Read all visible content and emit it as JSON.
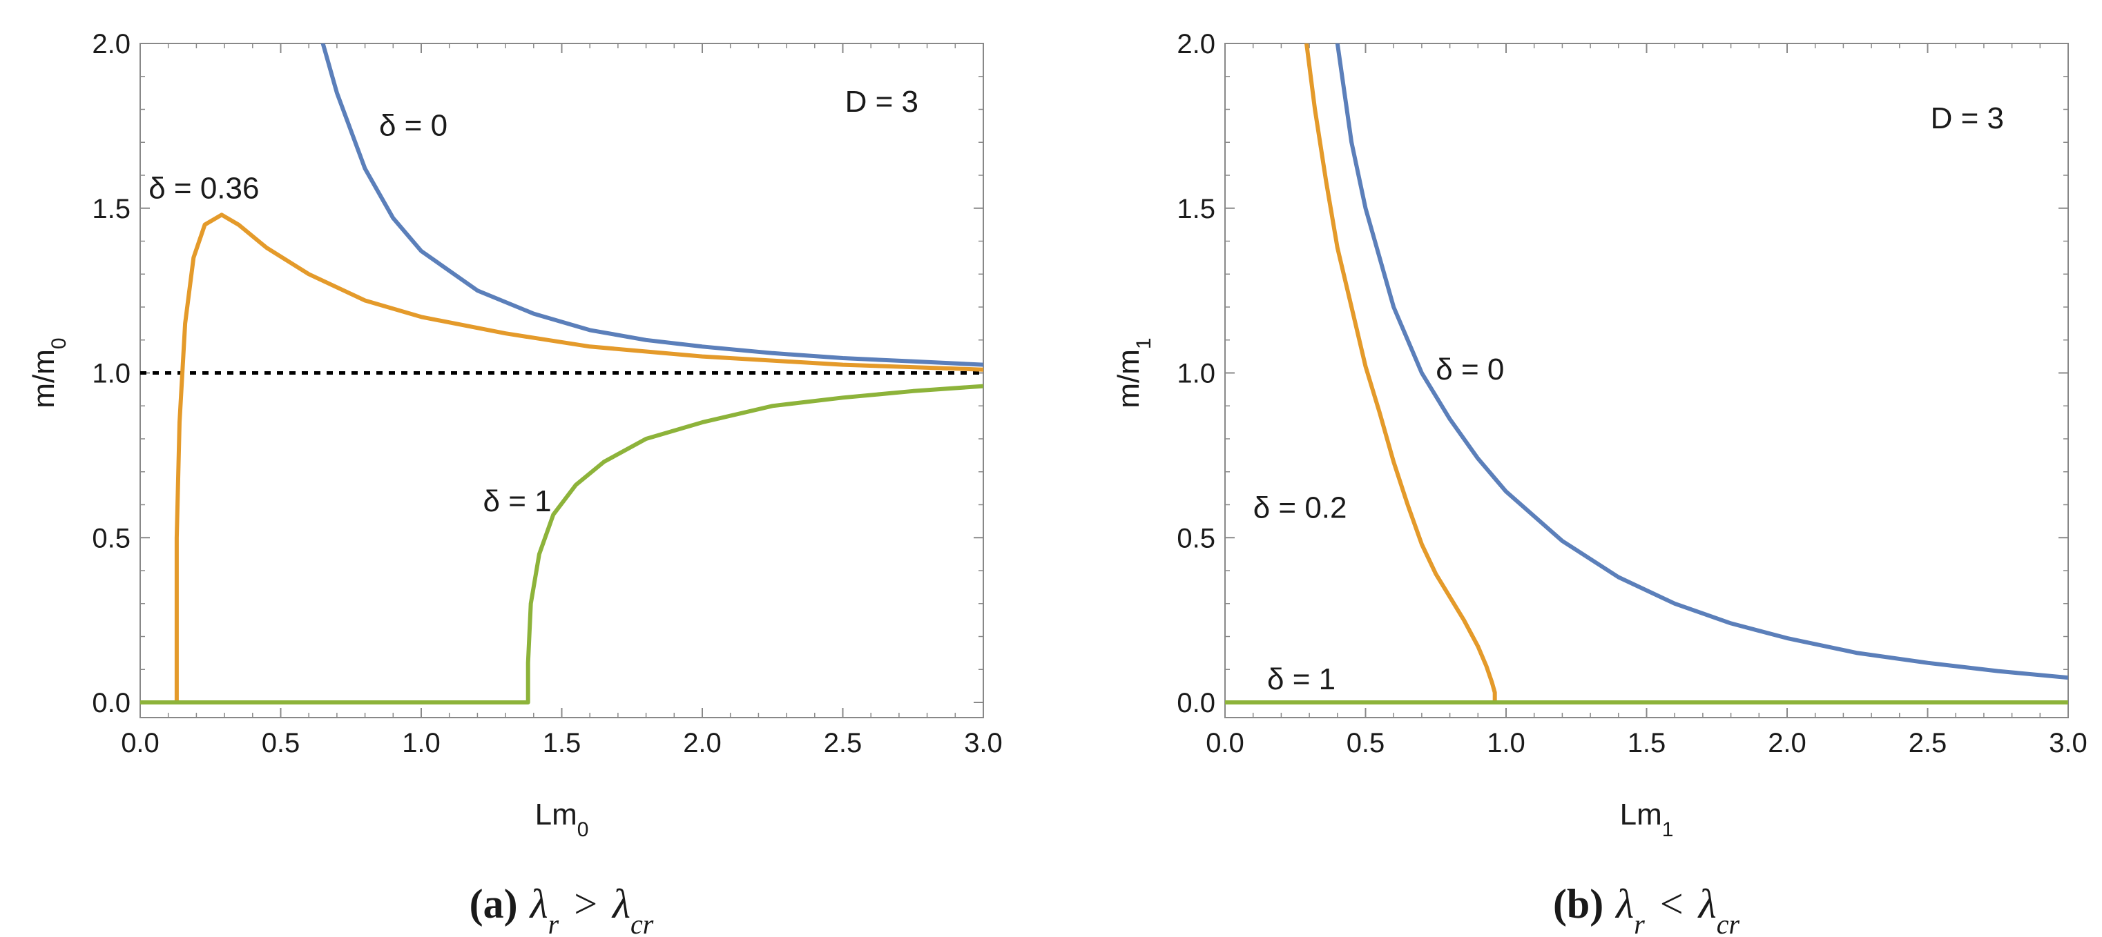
{
  "chart_data": [
    {
      "type": "line",
      "panel": "a",
      "caption": {
        "label": "(a)",
        "cond_left": "λ",
        "cond_left_sub": "r",
        "op": ">",
        "cond_right": "λ",
        "cond_right_sub": "cr"
      },
      "xlabel": {
        "text": "Lm",
        "sub": "0"
      },
      "ylabel": {
        "text": "m/m",
        "sub": "0"
      },
      "xlim": [
        0,
        3
      ],
      "ylim": [
        0,
        2
      ],
      "xticks": [
        "0.0",
        "0.5",
        "1.0",
        "1.5",
        "2.0",
        "2.5",
        "3.0"
      ],
      "yticks": [
        "0.0",
        "0.5",
        "1.0",
        "1.5",
        "2.0"
      ],
      "corner_label": "D = 3",
      "colors": {
        "blue": "#5b7fba",
        "orange": "#e49a2a",
        "green": "#8db33a",
        "ref": "#000000"
      },
      "reference_line": {
        "y": 1.0,
        "style": "dotted"
      },
      "series": [
        {
          "name": "δ = 0",
          "color": "blue",
          "x": [
            0.65,
            0.7,
            0.8,
            0.9,
            1.0,
            1.2,
            1.4,
            1.6,
            1.8,
            2.0,
            2.25,
            2.5,
            2.75,
            3.0
          ],
          "y": [
            2.0,
            1.85,
            1.62,
            1.47,
            1.37,
            1.25,
            1.18,
            1.13,
            1.1,
            1.08,
            1.06,
            1.045,
            1.035,
            1.025
          ]
        },
        {
          "name": "δ = 0.36",
          "color": "orange",
          "x": [
            0.13,
            0.13,
            0.14,
            0.16,
            0.19,
            0.23,
            0.29,
            0.35,
            0.45,
            0.6,
            0.8,
            1.0,
            1.3,
            1.6,
            2.0,
            2.5,
            3.0
          ],
          "y": [
            0.0,
            0.5,
            0.85,
            1.15,
            1.35,
            1.45,
            1.48,
            1.45,
            1.38,
            1.3,
            1.22,
            1.17,
            1.12,
            1.08,
            1.05,
            1.025,
            1.01
          ]
        },
        {
          "name": "δ = 1",
          "color": "green",
          "x": [
            0.0,
            1.38,
            1.38,
            1.39,
            1.42,
            1.47,
            1.55,
            1.65,
            1.8,
            2.0,
            2.25,
            2.5,
            2.75,
            3.0
          ],
          "y": [
            0.0,
            0.0,
            0.12,
            0.3,
            0.45,
            0.57,
            0.66,
            0.73,
            0.8,
            0.85,
            0.9,
            0.925,
            0.945,
            0.96
          ]
        }
      ],
      "annotations": [
        {
          "text": "δ = 0",
          "x": 0.85,
          "y": 1.72
        },
        {
          "text": "δ = 0.36",
          "x": 0.03,
          "y": 1.53
        },
        {
          "text": "δ = 1",
          "x": 1.22,
          "y": 0.58
        }
      ]
    },
    {
      "type": "line",
      "panel": "b",
      "caption": {
        "label": "(b)",
        "cond_left": "λ",
        "cond_left_sub": "r",
        "op": "<",
        "cond_right": "λ",
        "cond_right_sub": "cr"
      },
      "xlabel": {
        "text": "Lm",
        "sub": "1"
      },
      "ylabel": {
        "text": "m/m",
        "sub": "1"
      },
      "xlim": [
        0,
        3
      ],
      "ylim": [
        0,
        2
      ],
      "xticks": [
        "0.0",
        "0.5",
        "1.0",
        "1.5",
        "2.0",
        "2.5",
        "3.0"
      ],
      "yticks": [
        "0.0",
        "0.5",
        "1.0",
        "1.5",
        "2.0"
      ],
      "corner_label": "D = 3",
      "colors": {
        "blue": "#5b7fba",
        "orange": "#e49a2a",
        "green": "#8db33a"
      },
      "series": [
        {
          "name": "δ = 0",
          "color": "blue",
          "x": [
            0.4,
            0.45,
            0.5,
            0.6,
            0.7,
            0.8,
            0.9,
            1.0,
            1.2,
            1.4,
            1.6,
            1.8,
            2.0,
            2.25,
            2.5,
            2.75,
            3.0
          ],
          "y": [
            2.0,
            1.7,
            1.5,
            1.2,
            1.0,
            0.86,
            0.74,
            0.64,
            0.49,
            0.38,
            0.3,
            0.24,
            0.195,
            0.15,
            0.12,
            0.095,
            0.075
          ]
        },
        {
          "name": "δ = 0.2",
          "color": "orange",
          "x": [
            0.29,
            0.32,
            0.36,
            0.4,
            0.45,
            0.5,
            0.55,
            0.6,
            0.65,
            0.7,
            0.75,
            0.8,
            0.85,
            0.9,
            0.93,
            0.95,
            0.96,
            0.96
          ],
          "y": [
            2.0,
            1.8,
            1.58,
            1.38,
            1.2,
            1.02,
            0.88,
            0.73,
            0.6,
            0.48,
            0.39,
            0.32,
            0.25,
            0.17,
            0.11,
            0.06,
            0.03,
            0.0
          ]
        },
        {
          "name": "δ = 1",
          "color": "green",
          "x": [
            0.0,
            3.0
          ],
          "y": [
            0.0,
            0.0
          ]
        }
      ],
      "annotations": [
        {
          "text": "δ = 0",
          "x": 0.75,
          "y": 0.98
        },
        {
          "text": "δ = 0.2",
          "x": 0.1,
          "y": 0.56
        },
        {
          "text": "δ = 1",
          "x": 0.15,
          "y": 0.04
        }
      ]
    }
  ]
}
